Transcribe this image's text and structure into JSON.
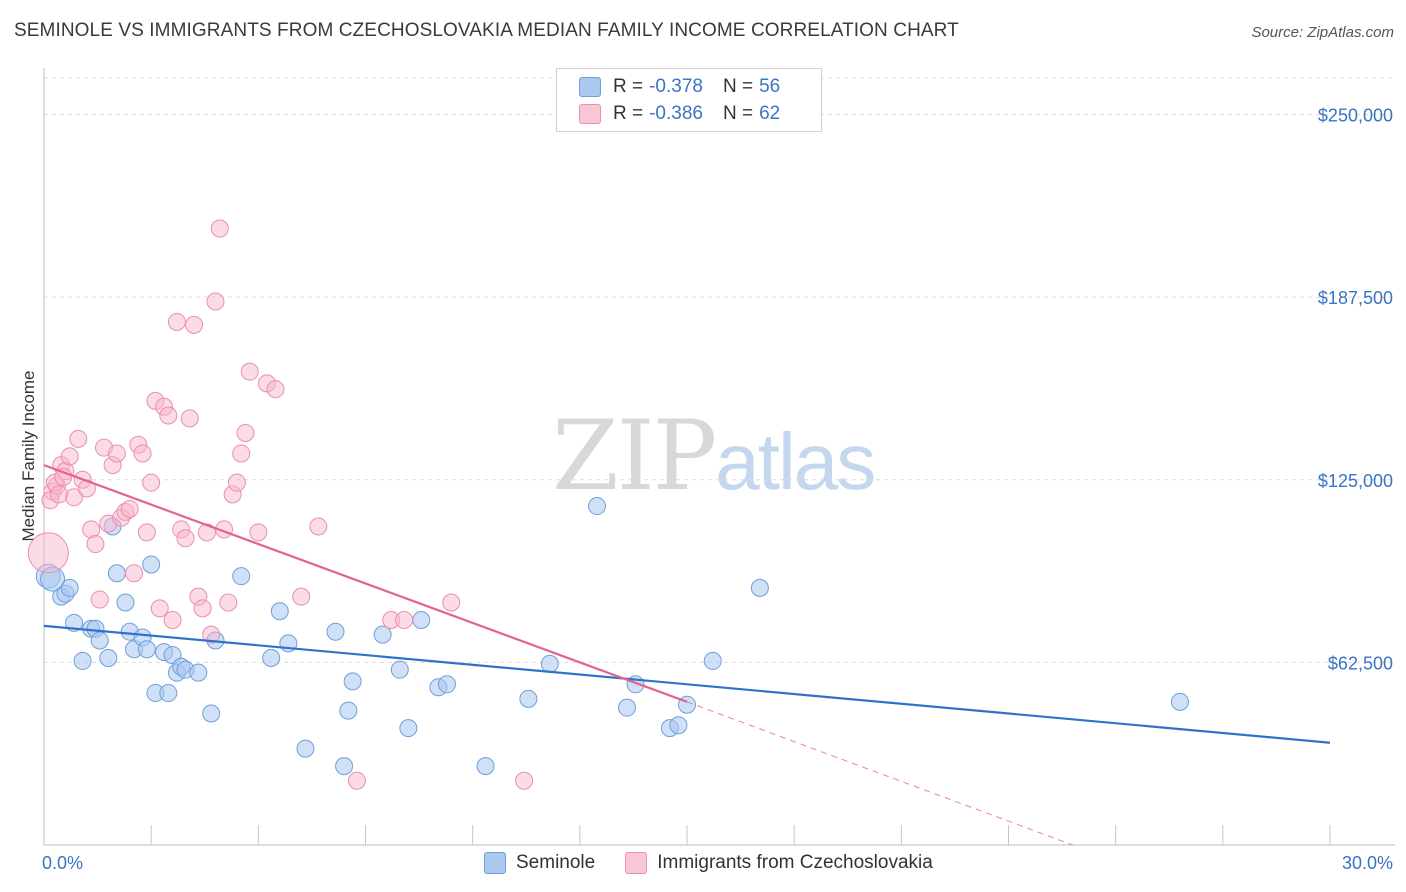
{
  "title": "SEMINOLE VS IMMIGRANTS FROM CZECHOSLOVAKIA MEDIAN FAMILY INCOME CORRELATION CHART",
  "source": "Source: ZipAtlas.com",
  "watermark": {
    "zip": "ZIP",
    "atlas": "atlas"
  },
  "legend": {
    "rows": [
      {
        "r_label": "R =",
        "r_value": "-0.378",
        "n_label": "N =",
        "n_value": "56"
      },
      {
        "r_label": "R =",
        "r_value": "-0.386",
        "n_label": "N =",
        "n_value": "62"
      }
    ]
  },
  "colors": {
    "seminole_fill": "#aac8f0",
    "seminole_stroke": "#6f9fd8",
    "seminole_line": "#2f72c9",
    "czech_fill": "#f7b8cc",
    "czech_stroke": "#ea8fae",
    "czech_line": "#e0648f",
    "axis_text": "#3a74c4",
    "grid": "#dcdcdc"
  },
  "chart_data": {
    "type": "scatter",
    "title": "SEMINOLE VS IMMIGRANTS FROM CZECHOSLOVAKIA MEDIAN FAMILY INCOME CORRELATION CHART",
    "xlabel": "",
    "ylabel": "Median Family Income",
    "xlim": [
      0,
      30
    ],
    "ylim": [
      0,
      262500
    ],
    "x_tick_labels": [
      "0.0%",
      "30.0%"
    ],
    "y_ticks": [
      62500,
      125000,
      187500,
      250000
    ],
    "y_tick_labels": [
      "$62,500",
      "$125,000",
      "$187,500",
      "$250,000"
    ],
    "grid": true,
    "series": [
      {
        "name": "Seminole",
        "r": -0.378,
        "n": 56,
        "trend": {
          "x": [
            0,
            30
          ],
          "y": [
            75000,
            35000
          ]
        },
        "points": [
          [
            0.1,
            92000
          ],
          [
            0.2,
            91000
          ],
          [
            0.4,
            85000
          ],
          [
            0.5,
            86000
          ],
          [
            0.6,
            88000
          ],
          [
            0.7,
            76000
          ],
          [
            0.9,
            63000
          ],
          [
            1.1,
            74000
          ],
          [
            1.2,
            74000
          ],
          [
            1.3,
            70000
          ],
          [
            1.5,
            64000
          ],
          [
            1.6,
            109000
          ],
          [
            1.7,
            93000
          ],
          [
            1.9,
            83000
          ],
          [
            2.0,
            73000
          ],
          [
            2.1,
            67000
          ],
          [
            2.3,
            71000
          ],
          [
            2.4,
            67000
          ],
          [
            2.5,
            96000
          ],
          [
            2.6,
            52000
          ],
          [
            2.8,
            66000
          ],
          [
            2.9,
            52000
          ],
          [
            3.0,
            65000
          ],
          [
            3.1,
            59000
          ],
          [
            3.2,
            61000
          ],
          [
            3.3,
            60000
          ],
          [
            3.6,
            59000
          ],
          [
            3.9,
            45000
          ],
          [
            4.0,
            70000
          ],
          [
            4.6,
            92000
          ],
          [
            5.3,
            64000
          ],
          [
            5.5,
            80000
          ],
          [
            5.7,
            69000
          ],
          [
            6.1,
            33000
          ],
          [
            6.8,
            73000
          ],
          [
            7.0,
            27000
          ],
          [
            7.1,
            46000
          ],
          [
            7.2,
            56000
          ],
          [
            7.9,
            72000
          ],
          [
            8.3,
            60000
          ],
          [
            8.5,
            40000
          ],
          [
            8.8,
            77000
          ],
          [
            9.2,
            54000
          ],
          [
            9.4,
            55000
          ],
          [
            10.3,
            27000
          ],
          [
            11.3,
            50000
          ],
          [
            11.8,
            62000
          ],
          [
            12.9,
            116000
          ],
          [
            13.6,
            47000
          ],
          [
            13.8,
            55000
          ],
          [
            14.6,
            40000
          ],
          [
            14.8,
            41000
          ],
          [
            15.0,
            48000
          ],
          [
            15.6,
            63000
          ],
          [
            16.7,
            88000
          ],
          [
            26.5,
            49000
          ]
        ]
      },
      {
        "name": "Immigrants from Czechoslovakia",
        "r": -0.386,
        "n": 62,
        "trend": {
          "x": [
            0,
            15
          ],
          "y": [
            130000,
            49000
          ]
        },
        "trend_ext": {
          "x": [
            15,
            24
          ],
          "y": [
            49000,
            0
          ]
        },
        "points": [
          [
            0.1,
            100000
          ],
          [
            0.2,
            121000
          ],
          [
            0.3,
            123000
          ],
          [
            0.4,
            130000
          ],
          [
            0.5,
            128000
          ],
          [
            0.6,
            133000
          ],
          [
            0.7,
            119000
          ],
          [
            0.8,
            139000
          ],
          [
            0.9,
            125000
          ],
          [
            1.0,
            122000
          ],
          [
            1.1,
            108000
          ],
          [
            1.2,
            103000
          ],
          [
            1.3,
            84000
          ],
          [
            1.4,
            136000
          ],
          [
            1.5,
            110000
          ],
          [
            1.6,
            130000
          ],
          [
            1.7,
            134000
          ],
          [
            1.8,
            112000
          ],
          [
            1.9,
            114000
          ],
          [
            2.0,
            115000
          ],
          [
            2.1,
            93000
          ],
          [
            2.2,
            137000
          ],
          [
            2.3,
            134000
          ],
          [
            2.4,
            107000
          ],
          [
            2.5,
            124000
          ],
          [
            2.6,
            152000
          ],
          [
            2.7,
            81000
          ],
          [
            2.8,
            150000
          ],
          [
            2.9,
            147000
          ],
          [
            3.0,
            77000
          ],
          [
            3.1,
            179000
          ],
          [
            3.2,
            108000
          ],
          [
            3.3,
            105000
          ],
          [
            3.4,
            146000
          ],
          [
            3.5,
            178000
          ],
          [
            3.6,
            85000
          ],
          [
            3.7,
            81000
          ],
          [
            3.8,
            107000
          ],
          [
            3.9,
            72000
          ],
          [
            4.0,
            186000
          ],
          [
            4.1,
            211000
          ],
          [
            4.2,
            108000
          ],
          [
            4.3,
            83000
          ],
          [
            4.4,
            120000
          ],
          [
            4.5,
            124000
          ],
          [
            4.6,
            134000
          ],
          [
            4.7,
            141000
          ],
          [
            4.8,
            162000
          ],
          [
            5.0,
            107000
          ],
          [
            5.2,
            158000
          ],
          [
            5.4,
            156000
          ],
          [
            6.0,
            85000
          ],
          [
            6.4,
            109000
          ],
          [
            7.3,
            22000
          ],
          [
            8.1,
            77000
          ],
          [
            8.4,
            77000
          ],
          [
            9.5,
            83000
          ],
          [
            11.2,
            22000
          ],
          [
            0.15,
            118000
          ],
          [
            0.25,
            124000
          ],
          [
            0.35,
            120000
          ],
          [
            0.45,
            126000
          ]
        ]
      }
    ]
  }
}
